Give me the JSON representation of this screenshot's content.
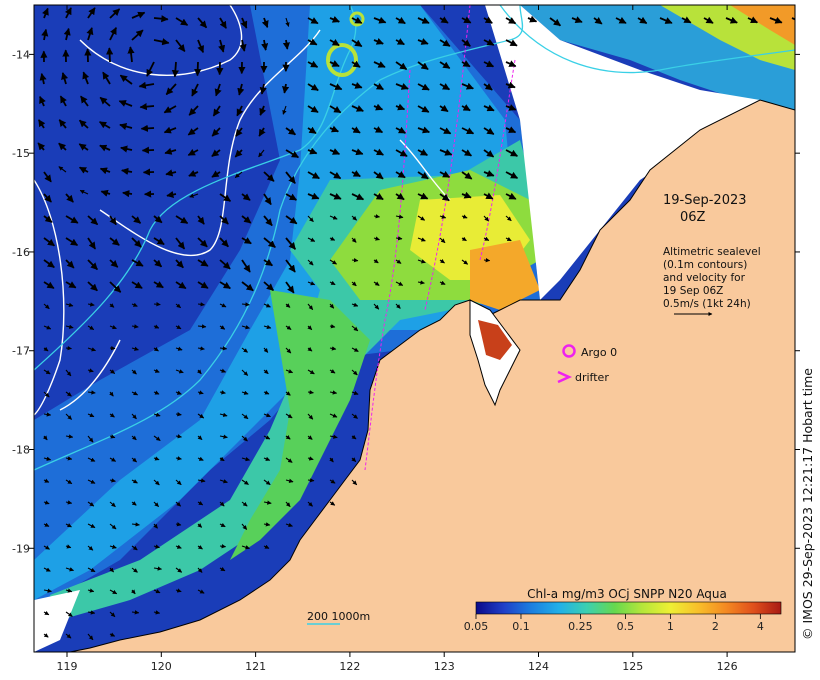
{
  "map": {
    "x_ticks": [
      "119",
      "120",
      "121",
      "122",
      "123",
      "124",
      "125",
      "126"
    ],
    "y_ticks": [
      "-14",
      "-15",
      "-16",
      "-17",
      "-18",
      "-19"
    ],
    "x_range": [
      118.65,
      126.72
    ],
    "y_range": [
      -20.05,
      -13.5
    ]
  },
  "annotations": {
    "date": "19-Sep-2023",
    "time": "06Z",
    "legend_lines": [
      "Altimetric sealevel",
      "(0.1m contours)",
      "and velocity for",
      "19 Sep 06Z",
      "0.5m/s (1kt 24h)"
    ],
    "argo_label": "Argo 0",
    "drifter_label": "drifter",
    "scale_label": "200  1000m"
  },
  "colorbar": {
    "title": "Chl-a mg/m3 OCj SNPP N20 Aqua",
    "ticks": [
      "0.05",
      "0.1",
      "0.25",
      "0.5",
      "1",
      "2",
      "4"
    ],
    "stops": [
      "#0a0a8a",
      "#1f3fc8",
      "#1c7fe0",
      "#22b0e8",
      "#3cd0b0",
      "#66d84e",
      "#b6e63a",
      "#eef034",
      "#f8c02a",
      "#f48a22",
      "#e0501c",
      "#a81a14"
    ]
  },
  "copyright": "© IMOS 29-Sep-2023 12:21:17 Hobart time",
  "colors": {
    "land": "#f9c99c",
    "no_data": "#ffffff",
    "argo": "#ee22ee",
    "drifter": "#ee22ee",
    "contour": "#ffffff",
    "depth_contour": "#3ad0e6"
  }
}
